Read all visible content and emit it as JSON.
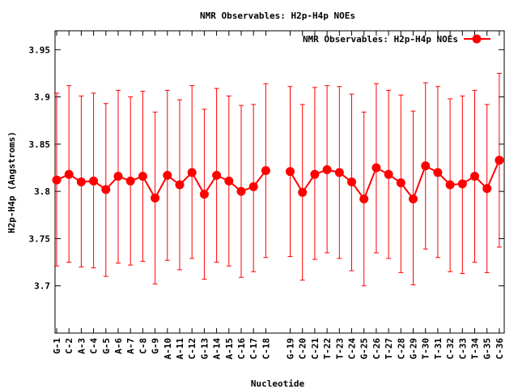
{
  "chart_data": {
    "type": "line",
    "title": "NMR Observables: H2p-H4p NOEs",
    "xlabel": "Nucleotide",
    "ylabel": "H2p-H4p (Angstroms)",
    "ylim": [
      3.65,
      3.97
    ],
    "yticks": [
      "3.7",
      "3.75",
      "3.8",
      "3.85",
      "3.9",
      "3.95"
    ],
    "grid": false,
    "legend_position": "top-right",
    "color": "#ff0000",
    "groups": [
      {
        "categories": [
          "G-1",
          "C-2",
          "A-3",
          "C-4",
          "G-5",
          "A-6",
          "A-7",
          "C-8",
          "G-9",
          "A-10",
          "A-11",
          "C-12",
          "G-13",
          "A-14",
          "A-15",
          "C-16",
          "C-17",
          "C-18"
        ],
        "values": [
          3.812,
          3.818,
          3.81,
          3.811,
          3.802,
          3.816,
          3.811,
          3.816,
          3.793,
          3.817,
          3.807,
          3.82,
          3.797,
          3.817,
          3.811,
          3.8,
          3.805,
          3.822
        ],
        "upper": [
          3.904,
          3.912,
          3.901,
          3.904,
          3.893,
          3.907,
          3.9,
          3.906,
          3.884,
          3.907,
          3.897,
          3.912,
          3.887,
          3.909,
          3.901,
          3.891,
          3.892,
          3.914
        ],
        "lower": [
          3.721,
          3.725,
          3.72,
          3.719,
          3.71,
          3.724,
          3.722,
          3.726,
          3.702,
          3.727,
          3.717,
          3.729,
          3.707,
          3.725,
          3.721,
          3.709,
          3.715,
          3.73
        ]
      },
      {
        "categories": [
          "G-19",
          "C-20",
          "C-21",
          "T-22",
          "T-23",
          "C-24",
          "G-25",
          "C-26",
          "T-27",
          "C-28",
          "G-29",
          "T-30",
          "T-31",
          "C-32",
          "C-33",
          "T-34",
          "G-35",
          "C-36"
        ],
        "values": [
          3.821,
          3.799,
          3.818,
          3.823,
          3.82,
          3.81,
          3.792,
          3.825,
          3.818,
          3.809,
          3.792,
          3.827,
          3.82,
          3.807,
          3.808,
          3.816,
          3.803,
          3.833
        ],
        "upper": [
          3.911,
          3.892,
          3.91,
          3.912,
          3.911,
          3.903,
          3.884,
          3.914,
          3.907,
          3.902,
          3.885,
          3.915,
          3.911,
          3.898,
          3.901,
          3.907,
          3.892,
          3.925
        ],
        "lower": [
          3.731,
          3.706,
          3.728,
          3.735,
          3.729,
          3.716,
          3.7,
          3.735,
          3.729,
          3.714,
          3.701,
          3.739,
          3.73,
          3.715,
          3.713,
          3.725,
          3.714,
          3.741
        ]
      }
    ],
    "series": [
      {
        "name": "NMR Observables: H2p-H4p NOEs"
      }
    ]
  }
}
